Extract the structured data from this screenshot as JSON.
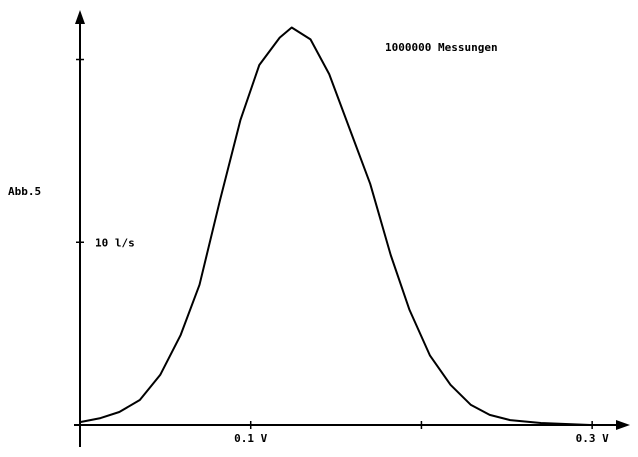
{
  "chart_data": {
    "type": "line",
    "annotations": [
      "Abb.5",
      "1000000 Messungen"
    ],
    "x": [
      0,
      0.012,
      0.023,
      0.035,
      0.047,
      0.059,
      0.07,
      0.082,
      0.094,
      0.105,
      0.117,
      0.124,
      0.135,
      0.146,
      0.158,
      0.17,
      0.182,
      0.193,
      0.205,
      0.217,
      0.229,
      0.24,
      0.252,
      0.27,
      0.299
    ],
    "series": [
      {
        "color": "#000000",
        "values": [
          0.16,
          0.38,
          0.71,
          1.37,
          2.74,
          4.93,
          7.67,
          12.3,
          16.7,
          19.7,
          21.2,
          21.75,
          21.1,
          19.2,
          16.2,
          13.2,
          9.3,
          6.3,
          3.8,
          2.2,
          1.1,
          0.55,
          0.27,
          0.11,
          0
        ]
      }
    ],
    "xlim": [
      0,
      0.321
    ],
    "ylim": [
      0,
      22.6
    ],
    "xticks": [
      {
        "value": 0.1,
        "label": "0.1 V"
      },
      {
        "value": 0.2,
        "label": null
      },
      {
        "value": 0.3,
        "label": "0.3 V"
      }
    ],
    "yticks": [
      {
        "value": 10,
        "label": "10 l/s"
      },
      {
        "value": 20,
        "label": null
      }
    ]
  }
}
